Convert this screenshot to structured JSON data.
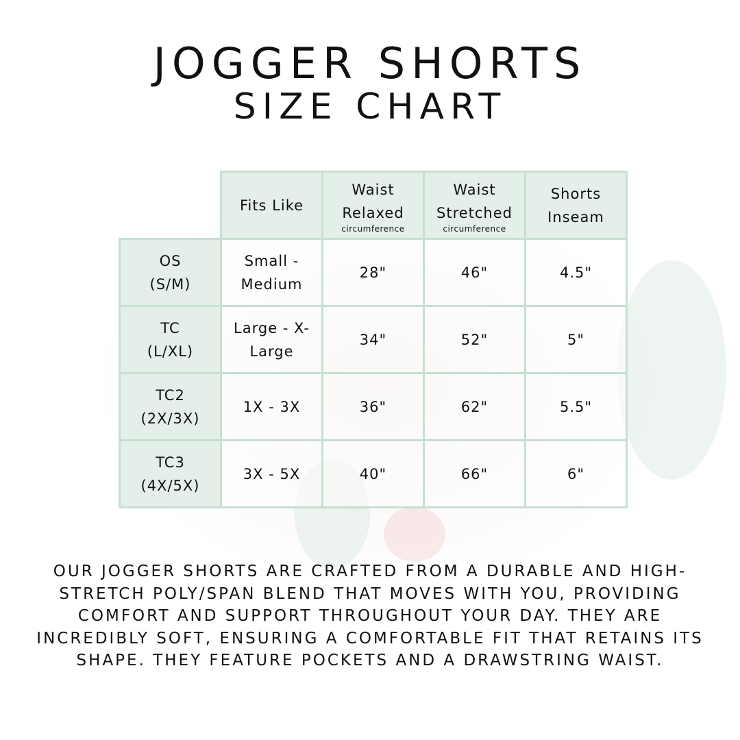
{
  "title": {
    "line1": "JOGGER SHORTS",
    "line2": "SIZE CHART"
  },
  "colors": {
    "header_bg": "#e5efe9",
    "border": "#c6dfd1",
    "text": "#111111"
  },
  "table": {
    "headers": [
      {
        "label": "Fits Like",
        "sub": ""
      },
      {
        "label": "Waist Relaxed",
        "sub": "circumference"
      },
      {
        "label": "Waist Stretched",
        "sub": "circumference"
      },
      {
        "label": "Shorts Inseam",
        "sub": ""
      }
    ],
    "rows": [
      {
        "size": "OS",
        "range": "(S/M)",
        "fits": "Small - Medium",
        "relaxed": "28\"",
        "stretched": "46\"",
        "inseam": "4.5\""
      },
      {
        "size": "TC",
        "range": "(L/XL)",
        "fits": "Large - X-Large",
        "relaxed": "34\"",
        "stretched": "52\"",
        "inseam": "5\""
      },
      {
        "size": "TC2",
        "range": "(2X/3X)",
        "fits": "1X - 3X",
        "relaxed": "36\"",
        "stretched": "62\"",
        "inseam": "5.5\""
      },
      {
        "size": "TC3",
        "range": "(4X/5X)",
        "fits": "3X - 5X",
        "relaxed": "40\"",
        "stretched": "66\"",
        "inseam": "6\""
      }
    ]
  },
  "description": "Our jogger shorts are crafted from a durable and high-stretch poly/span blend that moves with you, providing comfort and support throughout your day. They are incredibly soft, ensuring a comfortable fit that retains its shape. They feature pockets and a drawstring waist."
}
